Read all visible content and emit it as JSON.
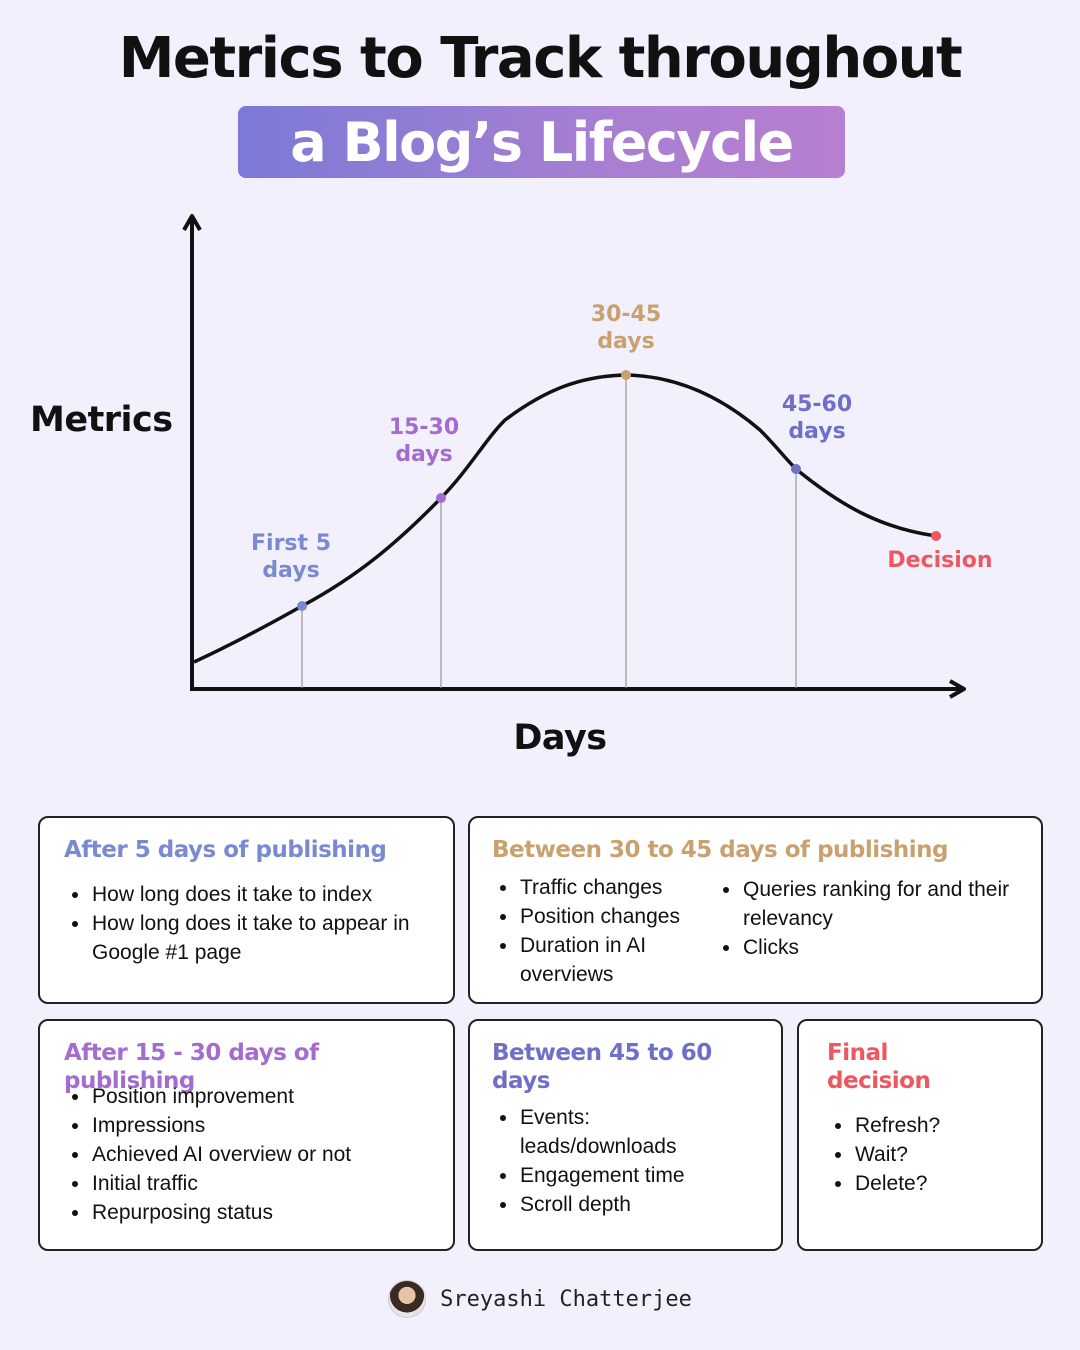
{
  "title": {
    "line1": "Metrics to Track throughout",
    "line2": "a Blog’s Lifecycle"
  },
  "colors": {
    "background": "#f1f0fc",
    "blue": "#7a8ad0",
    "purple": "#a56cd0",
    "gold": "#c9a16f",
    "indigo": "#6f6fc8",
    "red": "#f0565f"
  },
  "diagram": {
    "y_label": "Metrics",
    "x_label": "Days",
    "points": [
      {
        "label_line1": "First 5",
        "label_line2": "days",
        "color": "#7a8ad0"
      },
      {
        "label_line1": "15-30",
        "label_line2": "days",
        "color": "#a56cd0"
      },
      {
        "label_line1": "30-45",
        "label_line2": "days",
        "color": "#c9a16f"
      },
      {
        "label_line1": "45-60",
        "label_line2": "days",
        "color": "#6f6fc8"
      },
      {
        "label_line1": "Decision",
        "label_line2": "",
        "color": "#f0565f"
      }
    ]
  },
  "cards": {
    "after5": {
      "heading": "After 5 days of publishing",
      "items": [
        "How long does it take to index",
        "How long does it take to appear in Google #1 page"
      ]
    },
    "between30_45": {
      "heading": "Between 30 to 45 days of publishing",
      "items_left": [
        "Traffic changes",
        "Position changes",
        "Duration in AI overviews"
      ],
      "items_right": [
        "Queries ranking for and their relevancy",
        "Clicks"
      ]
    },
    "after15_30": {
      "heading": "After 15 - 30 days of publishing",
      "items": [
        "Position improvement",
        "Impressions",
        "Achieved AI overview or not",
        "Initial traffic",
        "Repurposing status"
      ]
    },
    "between45_60": {
      "heading": "Between 45 to 60 days",
      "items": [
        "Events: leads/downloads",
        "Engagement time",
        "Scroll depth"
      ]
    },
    "final": {
      "heading": "Final decision",
      "items": [
        "Refresh?",
        "Wait?",
        "Delete?"
      ]
    }
  },
  "footer": {
    "author": "Sreyashi Chatterjee"
  }
}
